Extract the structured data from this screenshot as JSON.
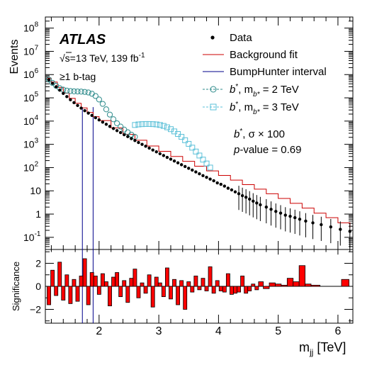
{
  "chart_data": {
    "type": "line",
    "experiment": "ATLAS",
    "energy_lumi": "√s=13 TeV, 139 fb",
    "lumi_exp": "-1",
    "selection": "≥1 b-tag",
    "annotation_line1": "b*,  σ × 100",
    "annotation_line2": "p-value = 0.69",
    "ylabel": "Events",
    "xlabel": "m",
    "xlabel_sub": "jj",
    "xlabel_unit": " [TeV]",
    "ratio_ylabel": "Significance",
    "xlim": [
      1.1,
      6.25
    ],
    "ylim": [
      0.03,
      300000000
    ],
    "yscale": "log",
    "ratio_ylim": [
      -3.2,
      3.2
    ],
    "x_ticks": [
      "2",
      "3",
      "4",
      "5",
      "6"
    ],
    "y_ticks": [
      {
        "base": "10",
        "exp": "8",
        "value": 100000000
      },
      {
        "base": "10",
        "exp": "7",
        "value": 10000000
      },
      {
        "base": "10",
        "exp": "6",
        "value": 1000000
      },
      {
        "base": "10",
        "exp": "5",
        "value": 100000
      },
      {
        "base": "10",
        "exp": "4",
        "value": 10000
      },
      {
        "base": "10",
        "exp": "3",
        "value": 1000
      },
      {
        "base": "10",
        "exp": "2",
        "value": 100
      },
      {
        "base": "10",
        "exp": "",
        "value": 10
      },
      {
        "base": "1",
        "exp": "",
        "value": 1
      },
      {
        "base": "10",
        "exp": "-1",
        "value": 0.1
      }
    ],
    "ratio_ticks": [
      {
        "label": "2",
        "value": 2
      },
      {
        "label": "0",
        "value": 0
      },
      {
        "label": "−2",
        "value": -2
      }
    ],
    "legend": [
      {
        "label": "Data",
        "color": "#000000"
      },
      {
        "label": "Background fit",
        "color": "#cc0000"
      },
      {
        "label": "BumpHunter interval",
        "color": "#00008b"
      },
      {
        "label": "b*, m",
        "sub": "b*",
        "suffix": " = 2 TeV",
        "color": "#2e8b8b"
      },
      {
        "label": "b*, m",
        "sub": "b*",
        "suffix": " = 3 TeV",
        "color": "#5bc0d8"
      }
    ],
    "bumphunter_interval": [
      1.72,
      1.9
    ],
    "series": [
      {
        "name": "Data",
        "points": [
          [
            1.16,
            600000
          ],
          [
            1.22,
            420000
          ],
          [
            1.28,
            300000
          ],
          [
            1.34,
            215000
          ],
          [
            1.4,
            155000
          ],
          [
            1.46,
            113000
          ],
          [
            1.52,
            83000
          ],
          [
            1.58,
            62000
          ],
          [
            1.64,
            47000
          ],
          [
            1.7,
            36000
          ],
          [
            1.76,
            28000
          ],
          [
            1.82,
            22000
          ],
          [
            1.88,
            17500
          ],
          [
            1.94,
            14000
          ],
          [
            2.0,
            11200
          ],
          [
            2.06,
            9000
          ],
          [
            2.12,
            7300
          ],
          [
            2.18,
            5900
          ],
          [
            2.24,
            4800
          ],
          [
            2.3,
            3900
          ],
          [
            2.36,
            3200
          ],
          [
            2.42,
            2600
          ],
          [
            2.48,
            2150
          ],
          [
            2.54,
            1770
          ],
          [
            2.6,
            1460
          ],
          [
            2.66,
            1200
          ],
          [
            2.72,
            1000
          ],
          [
            2.78,
            830
          ],
          [
            2.84,
            690
          ],
          [
            2.9,
            570
          ],
          [
            2.96,
            475
          ],
          [
            3.02,
            395
          ],
          [
            3.08,
            330
          ],
          [
            3.14,
            275
          ],
          [
            3.2,
            230
          ],
          [
            3.26,
            192
          ],
          [
            3.32,
            160
          ],
          [
            3.38,
            133
          ],
          [
            3.44,
            111
          ],
          [
            3.5,
            93
          ],
          [
            3.56,
            78
          ],
          [
            3.62,
            65
          ],
          [
            3.68,
            54
          ],
          [
            3.74,
            45
          ],
          [
            3.8,
            38
          ],
          [
            3.86,
            32
          ],
          [
            3.92,
            27
          ],
          [
            3.98,
            22
          ],
          [
            4.04,
            19
          ],
          [
            4.1,
            16
          ],
          [
            4.16,
            13
          ],
          [
            4.22,
            11
          ],
          [
            4.28,
            9
          ],
          [
            4.34,
            7.5
          ],
          [
            4.4,
            6.2
          ],
          [
            4.46,
            5.3
          ],
          [
            4.52,
            4.4
          ],
          [
            4.58,
            3.6
          ],
          [
            4.64,
            3.0
          ],
          [
            4.7,
            2.5
          ],
          [
            4.8,
            2.0
          ],
          [
            4.88,
            1.6
          ],
          [
            4.96,
            1.3
          ],
          [
            5.04,
            1.1
          ],
          [
            5.12,
            0.9
          ],
          [
            5.2,
            0.8
          ],
          [
            5.28,
            0.7
          ],
          [
            5.36,
            0.6
          ],
          [
            5.46,
            0.5
          ],
          [
            5.58,
            0.42
          ],
          [
            5.72,
            0.35
          ],
          [
            5.88,
            0.28
          ],
          [
            6.04,
            0.22
          ],
          [
            6.2,
            0.18
          ]
        ]
      },
      {
        "name": "Background fit",
        "points": [
          [
            1.12,
            700000
          ],
          [
            1.2,
            480000
          ],
          [
            1.3,
            280000
          ],
          [
            1.4,
            160000
          ],
          [
            1.5,
            95000
          ],
          [
            1.6,
            58000
          ],
          [
            1.7,
            37000
          ],
          [
            1.8,
            23500
          ],
          [
            1.9,
            15500
          ],
          [
            2.0,
            10500
          ],
          [
            2.2,
            5100
          ],
          [
            2.4,
            2700
          ],
          [
            2.6,
            1500
          ],
          [
            2.8,
            850
          ],
          [
            3.0,
            500
          ],
          [
            3.2,
            300
          ],
          [
            3.4,
            185
          ],
          [
            3.6,
            115
          ],
          [
            3.8,
            72
          ],
          [
            4.0,
            46
          ],
          [
            4.2,
            29
          ],
          [
            4.4,
            18.5
          ],
          [
            4.6,
            11.8
          ],
          [
            4.8,
            7.5
          ],
          [
            5.0,
            4.7
          ],
          [
            5.2,
            2.9
          ],
          [
            5.4,
            1.8
          ],
          [
            5.6,
            1.1
          ],
          [
            5.8,
            0.7
          ],
          [
            6.0,
            0.42
          ],
          [
            6.2,
            0.25
          ]
        ]
      },
      {
        "name": "b*, mb* = 2 TeV",
        "points": [
          [
            1.16,
            610000
          ],
          [
            1.22,
            440000
          ],
          [
            1.28,
            330000
          ],
          [
            1.34,
            260000
          ],
          [
            1.4,
            225000
          ],
          [
            1.46,
            205000
          ],
          [
            1.52,
            195000
          ],
          [
            1.58,
            190000
          ],
          [
            1.64,
            188000
          ],
          [
            1.7,
            185000
          ],
          [
            1.76,
            180000
          ],
          [
            1.82,
            170000
          ],
          [
            1.88,
            150000
          ],
          [
            1.94,
            120000
          ],
          [
            2.0,
            85000
          ],
          [
            2.06,
            55000
          ],
          [
            2.12,
            32000
          ],
          [
            2.18,
            19000
          ],
          [
            2.24,
            12000
          ],
          [
            2.3,
            8000
          ],
          [
            2.36,
            5800
          ],
          [
            2.42,
            4300
          ],
          [
            2.48,
            3300
          ],
          [
            2.54,
            2600
          ],
          [
            2.6,
            2100
          ]
        ]
      },
      {
        "name": "b*, mb* = 3 TeV",
        "points": [
          [
            2.6,
            6800
          ],
          [
            2.66,
            7200
          ],
          [
            2.72,
            7400
          ],
          [
            2.78,
            7500
          ],
          [
            2.84,
            7500
          ],
          [
            2.9,
            7400
          ],
          [
            2.96,
            7200
          ],
          [
            3.02,
            6800
          ],
          [
            3.08,
            6200
          ],
          [
            3.14,
            5400
          ],
          [
            3.2,
            4500
          ],
          [
            3.26,
            3600
          ],
          [
            3.32,
            2800
          ],
          [
            3.38,
            2100
          ],
          [
            3.44,
            1500
          ],
          [
            3.5,
            1050
          ],
          [
            3.56,
            720
          ],
          [
            3.62,
            490
          ],
          [
            3.68,
            330
          ],
          [
            3.74,
            220
          ],
          [
            3.8,
            150
          ],
          [
            3.86,
            100
          ]
        ]
      }
    ],
    "significance": [
      [
        1.16,
        -1.6
      ],
      [
        1.22,
        1.4
      ],
      [
        1.28,
        -0.8
      ],
      [
        1.34,
        2.1
      ],
      [
        1.4,
        -1.2
      ],
      [
        1.46,
        1.0
      ],
      [
        1.52,
        -1.5
      ],
      [
        1.58,
        0.6
      ],
      [
        1.64,
        -1.3
      ],
      [
        1.7,
        0.9
      ],
      [
        1.76,
        2.4
      ],
      [
        1.82,
        -1.6
      ],
      [
        1.88,
        1.2
      ],
      [
        1.94,
        0.9
      ],
      [
        2.0,
        -0.7
      ],
      [
        2.06,
        1.1
      ],
      [
        2.12,
        0.4
      ],
      [
        2.18,
        -1.7
      ],
      [
        2.24,
        0.8
      ],
      [
        2.3,
        1.2
      ],
      [
        2.36,
        -0.9
      ],
      [
        2.42,
        0.5
      ],
      [
        2.48,
        -1.4
      ],
      [
        2.54,
        0.7
      ],
      [
        2.6,
        1.5
      ],
      [
        2.66,
        -1.0
      ],
      [
        2.72,
        0.3
      ],
      [
        2.78,
        -0.6
      ],
      [
        2.84,
        1.0
      ],
      [
        2.9,
        -1.8
      ],
      [
        2.96,
        0.8
      ],
      [
        3.02,
        0.3
      ],
      [
        3.08,
        -0.9
      ],
      [
        3.14,
        1.6
      ],
      [
        3.2,
        -1.1
      ],
      [
        3.26,
        0.6
      ],
      [
        3.32,
        -1.6
      ],
      [
        3.38,
        0.5
      ],
      [
        3.44,
        -2.0
      ],
      [
        3.5,
        0.4
      ],
      [
        3.56,
        -0.5
      ],
      [
        3.62,
        0.9
      ],
      [
        3.68,
        -0.3
      ],
      [
        3.74,
        0.7
      ],
      [
        3.8,
        -0.4
      ],
      [
        3.86,
        1.7
      ],
      [
        3.92,
        -0.6
      ],
      [
        3.98,
        0.5
      ],
      [
        4.04,
        -0.4
      ],
      [
        4.1,
        -0.5
      ],
      [
        4.16,
        1.1
      ],
      [
        4.22,
        -0.7
      ],
      [
        4.28,
        -0.6
      ],
      [
        4.34,
        -0.5
      ],
      [
        4.4,
        0.9
      ],
      [
        4.46,
        -0.6
      ],
      [
        4.52,
        -0.4
      ],
      [
        4.58,
        0.2
      ],
      [
        4.64,
        -0.3
      ],
      [
        4.7,
        0.4
      ],
      [
        4.8,
        -0.2
      ],
      [
        4.9,
        0.3
      ],
      [
        5.0,
        0.2
      ],
      [
        5.1,
        0.1
      ],
      [
        5.2,
        0.7
      ],
      [
        5.3,
        0.4
      ],
      [
        5.4,
        1.8
      ],
      [
        5.5,
        0.2
      ],
      [
        5.6,
        0.1
      ],
      [
        5.8,
        0.0
      ],
      [
        6.0,
        0.0
      ],
      [
        6.12,
        0.6
      ]
    ]
  }
}
